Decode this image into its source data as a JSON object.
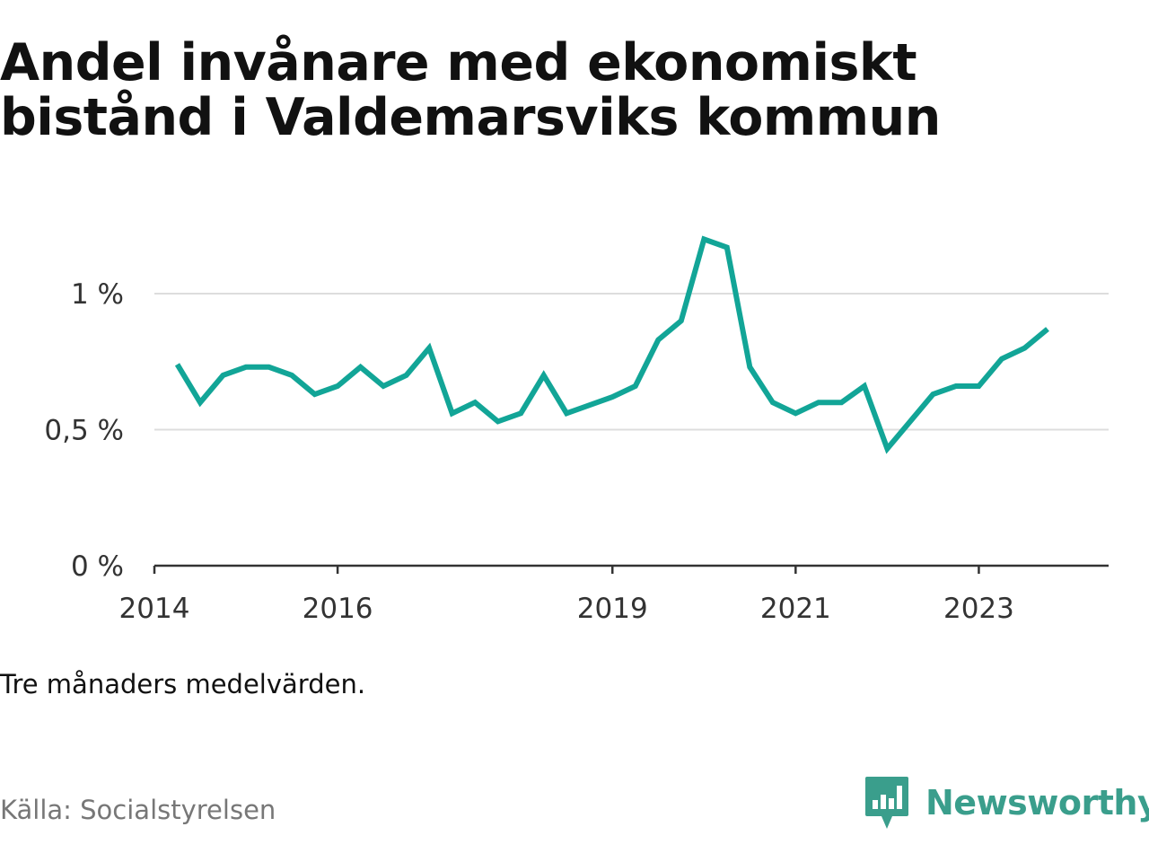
{
  "title": "Andel invånare med ekonomiskt bistånd i Valdemarsviks kommun",
  "note": "Tre månaders medelvärden.",
  "source": "Källa: Socialstyrelsen",
  "brand": {
    "name": "Newsworthy",
    "icon": "newsworthy-logo-icon",
    "color": "#3a9e8c"
  },
  "colors": {
    "line": "#12a597",
    "grid": "#dddddd",
    "axis": "#333333"
  },
  "chart_data": {
    "type": "line",
    "title": "Andel invånare med ekonomiskt bistånd i Valdemarsviks kommun",
    "xlabel": "",
    "ylabel": "",
    "x": [
      "2014-04",
      "2014-07",
      "2014-10",
      "2015-01",
      "2015-04",
      "2015-07",
      "2015-10",
      "2016-01",
      "2016-04",
      "2016-07",
      "2016-10",
      "2017-01",
      "2017-04",
      "2017-07",
      "2017-10",
      "2018-01",
      "2018-04",
      "2018-07",
      "2018-10",
      "2019-01",
      "2019-04",
      "2019-07",
      "2019-10",
      "2020-01",
      "2020-04",
      "2020-07",
      "2020-10",
      "2021-01",
      "2021-04",
      "2021-07",
      "2021-10",
      "2022-01",
      "2022-04",
      "2022-07",
      "2022-10",
      "2023-01",
      "2023-04",
      "2023-07",
      "2023-10"
    ],
    "series": [
      {
        "values": [
          0.74,
          0.6,
          0.7,
          0.73,
          0.73,
          0.7,
          0.63,
          0.66,
          0.73,
          0.66,
          0.7,
          0.8,
          0.56,
          0.6,
          0.53,
          0.56,
          0.7,
          0.56,
          0.59,
          0.62,
          0.66,
          0.83,
          0.9,
          1.2,
          1.17,
          0.73,
          0.6,
          0.56,
          0.6,
          0.6,
          0.66,
          0.43,
          0.53,
          0.63,
          0.66,
          0.66,
          0.76,
          0.8,
          0.87
        ]
      }
    ],
    "xlim": [
      "2014-01",
      "2024-06"
    ],
    "ylim": [
      0,
      1.2
    ],
    "x_ticks": [
      {
        "label": "2014",
        "date": "2014-01"
      },
      {
        "label": "2016",
        "date": "2016-01"
      },
      {
        "label": "2019",
        "date": "2019-01"
      },
      {
        "label": "2021",
        "date": "2021-01"
      },
      {
        "label": "2023",
        "date": "2023-01"
      }
    ],
    "y_ticks": [
      {
        "label": "0 %",
        "value": 0
      },
      {
        "label": "0,5 %",
        "value": 0.5
      },
      {
        "label": "1 %",
        "value": 1
      }
    ],
    "grid": true,
    "legend": "none"
  }
}
